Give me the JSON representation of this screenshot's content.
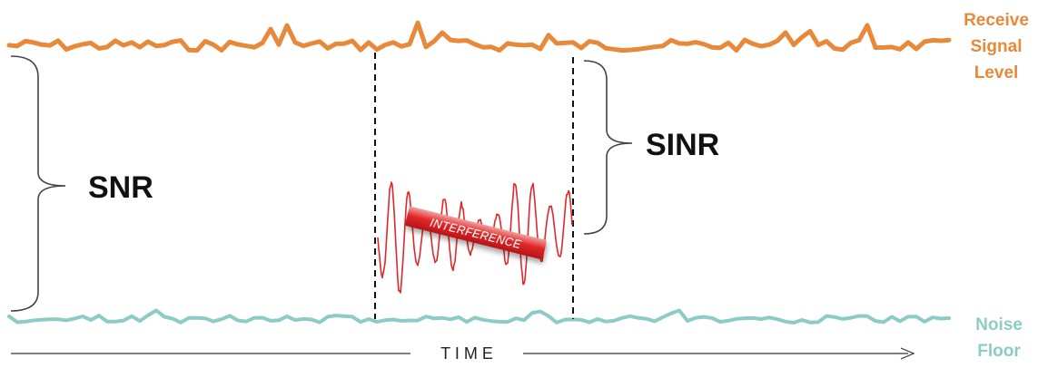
{
  "labels": {
    "receive_line1": "Receive",
    "receive_line2": "Signal",
    "receive_line3": "Level",
    "noise_line1": "Noise",
    "noise_line2": "Floor",
    "snr": "SNR",
    "sinr": "SINR",
    "interference": "INTERFERENCE",
    "time": "T I M E"
  },
  "colors": {
    "signal": "#E8893A",
    "noise": "#8CCBC6",
    "interference": "#E0282A",
    "text": "#111111",
    "dashed": "#111111",
    "bracket": "#444444"
  }
}
